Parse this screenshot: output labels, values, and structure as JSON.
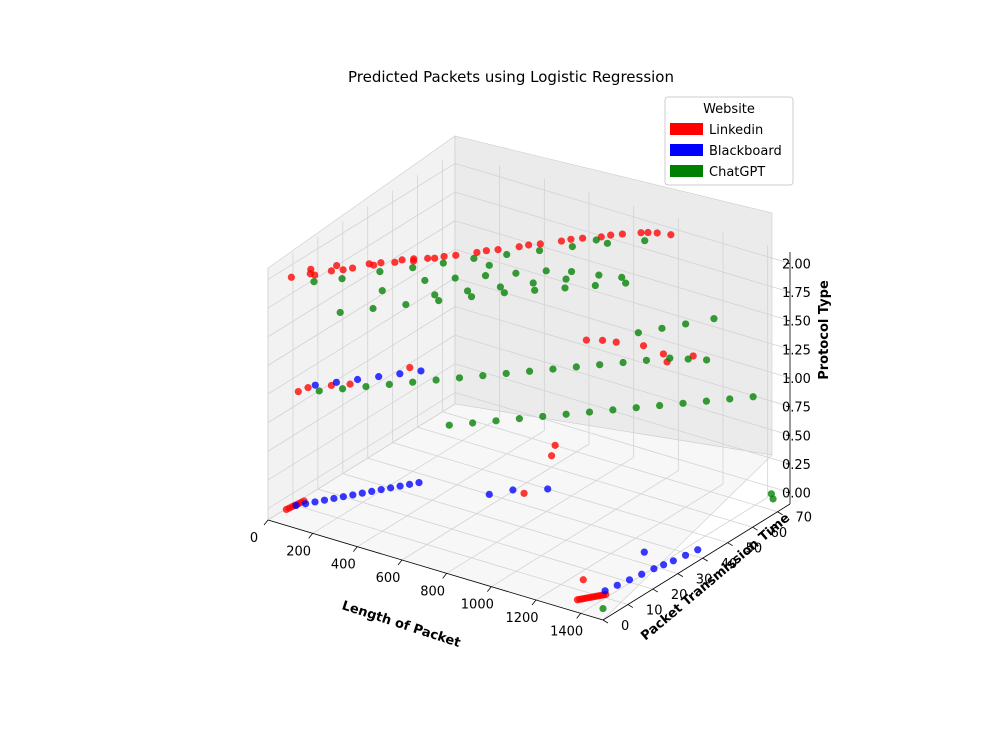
{
  "chart_data": {
    "type": "scatter",
    "title": "Predicted Packets using Logistic Regression",
    "xlabel": "Length of Packet",
    "ylabel": "Packet Transmission Time",
    "zlabel": "Protocol Type",
    "x_ticks": [
      "0",
      "200",
      "400",
      "600",
      "800",
      "1000",
      "1200",
      "1400"
    ],
    "y_ticks": [
      "0",
      "10",
      "20",
      "30",
      "40",
      "50",
      "60",
      "70"
    ],
    "z_ticks": [
      "0.00",
      "0.25",
      "0.50",
      "0.75",
      "1.00",
      "1.25",
      "1.50",
      "1.75",
      "2.00"
    ],
    "xlim": [
      0,
      1500
    ],
    "ylim": [
      0,
      75
    ],
    "zlim": [
      -0.1,
      2.1
    ],
    "grid": true,
    "projection": "3d",
    "legend": {
      "title": "Website",
      "placement": "top-right",
      "entries": [
        {
          "label": "Linkedin",
          "color": "#ff0000"
        },
        {
          "label": "Blackboard",
          "color": "#0000ff"
        },
        {
          "label": "ChatGPT",
          "color": "#008000"
        }
      ]
    },
    "series": [
      {
        "name": "Linkedin",
        "color": "#ff0000",
        "points": [
          [
            60,
            2,
            0
          ],
          [
            62,
            3,
            0
          ],
          [
            64,
            4,
            0
          ],
          [
            66,
            5,
            0
          ],
          [
            68,
            6,
            0
          ],
          [
            70,
            7,
            0
          ],
          [
            72,
            8,
            0
          ],
          [
            1380,
            0.5,
            0
          ],
          [
            1385,
            1,
            0
          ],
          [
            1390,
            1.5,
            0
          ],
          [
            1395,
            2,
            0
          ],
          [
            1400,
            2.5,
            0
          ],
          [
            1405,
            3,
            0
          ],
          [
            1410,
            3.5,
            0
          ],
          [
            1415,
            4,
            0
          ],
          [
            1420,
            4.5,
            0
          ],
          [
            1425,
            5,
            0
          ],
          [
            1430,
            5.5,
            0
          ],
          [
            1435,
            6,
            0
          ],
          [
            1440,
            6.5,
            0
          ],
          [
            1300,
            10,
            0
          ],
          [
            700,
            40,
            0
          ],
          [
            600,
            60,
            0
          ],
          [
            560,
            65,
            0
          ],
          [
            80,
            5,
            1
          ],
          [
            90,
            8,
            1
          ],
          [
            150,
            12,
            1
          ],
          [
            200,
            15,
            1
          ],
          [
            300,
            30,
            1
          ],
          [
            700,
            65,
            1
          ],
          [
            750,
            67,
            1
          ],
          [
            800,
            68,
            1
          ],
          [
            900,
            70,
            1
          ],
          [
            1000,
            69,
            1
          ],
          [
            1100,
            72,
            1
          ],
          [
            1050,
            66,
            1
          ],
          [
            60,
            4,
            2
          ],
          [
            100,
            8,
            2
          ],
          [
            150,
            12,
            2
          ],
          [
            200,
            16,
            2
          ],
          [
            250,
            20,
            2
          ],
          [
            300,
            24,
            2
          ],
          [
            350,
            27,
            2
          ],
          [
            400,
            31,
            2
          ],
          [
            450,
            35,
            2
          ],
          [
            500,
            39,
            2
          ],
          [
            550,
            43,
            2
          ],
          [
            600,
            47,
            2
          ],
          [
            650,
            51,
            2
          ],
          [
            700,
            55,
            2
          ],
          [
            750,
            59,
            2
          ],
          [
            800,
            62,
            2
          ],
          [
            850,
            66,
            2
          ],
          [
            900,
            69,
            2
          ],
          [
            950,
            71,
            2
          ],
          [
            1000,
            72,
            2
          ],
          [
            120,
            8,
            2
          ],
          [
            180,
            14,
            2
          ],
          [
            260,
            22,
            2
          ],
          [
            340,
            28,
            2
          ],
          [
            420,
            33,
            2
          ],
          [
            520,
            41,
            2
          ],
          [
            620,
            49,
            2
          ],
          [
            720,
            57,
            2
          ],
          [
            820,
            64,
            2
          ],
          [
            920,
            70,
            2
          ],
          [
            80,
            10,
            2
          ],
          [
            140,
            15,
            2
          ],
          [
            230,
            20,
            2
          ],
          [
            310,
            26,
            2
          ],
          [
            380,
            30,
            2
          ]
        ]
      },
      {
        "name": "Blackboard",
        "color": "#0000ff",
        "points": [
          [
            70,
            5,
            0
          ],
          [
            90,
            7,
            0
          ],
          [
            110,
            9,
            0
          ],
          [
            130,
            11,
            0
          ],
          [
            150,
            13,
            0
          ],
          [
            170,
            15,
            0
          ],
          [
            190,
            17,
            0
          ],
          [
            210,
            19,
            0
          ],
          [
            230,
            21,
            0
          ],
          [
            250,
            23,
            0
          ],
          [
            270,
            25,
            0
          ],
          [
            290,
            27,
            0
          ],
          [
            310,
            29,
            0
          ],
          [
            330,
            31,
            0
          ],
          [
            1420,
            8,
            0
          ],
          [
            1430,
            12,
            0
          ],
          [
            1440,
            16,
            0
          ],
          [
            1450,
            20,
            0
          ],
          [
            1460,
            24,
            0
          ],
          [
            1470,
            27,
            0
          ],
          [
            1480,
            30,
            0
          ],
          [
            1490,
            34,
            0
          ],
          [
            1500,
            38,
            0
          ],
          [
            1350,
            30,
            0
          ],
          [
            600,
            35,
            0
          ],
          [
            650,
            40,
            0
          ],
          [
            750,
            45,
            0
          ],
          [
            100,
            10,
            1
          ],
          [
            150,
            14,
            1
          ],
          [
            200,
            18,
            1
          ],
          [
            250,
            22,
            1
          ],
          [
            300,
            26,
            1
          ],
          [
            350,
            30,
            1
          ]
        ]
      },
      {
        "name": "ChatGPT",
        "color": "#008000",
        "points": [
          [
            150,
            5,
            2
          ],
          [
            220,
            10,
            2
          ],
          [
            300,
            18,
            2
          ],
          [
            380,
            24,
            2
          ],
          [
            450,
            30,
            2
          ],
          [
            520,
            36,
            2
          ],
          [
            600,
            42,
            2
          ],
          [
            680,
            48,
            2
          ],
          [
            760,
            54,
            2
          ],
          [
            850,
            60,
            2
          ],
          [
            950,
            66,
            2
          ],
          [
            1500,
            0,
            0
          ],
          [
            1480,
            70,
            0
          ],
          [
            1450,
            72,
            0
          ],
          [
            700,
            10,
            1
          ],
          [
            760,
            14,
            1
          ],
          [
            820,
            18,
            1
          ],
          [
            880,
            22,
            1
          ],
          [
            940,
            26,
            1
          ],
          [
            1000,
            30,
            1
          ],
          [
            1060,
            34,
            1
          ],
          [
            1120,
            38,
            1
          ],
          [
            1180,
            42,
            1
          ],
          [
            1240,
            46,
            1
          ],
          [
            1300,
            50,
            1
          ],
          [
            1360,
            54,
            1
          ],
          [
            1420,
            58,
            1
          ],
          [
            1480,
            62,
            1
          ],
          [
            140,
            8,
            1
          ],
          [
            200,
            12,
            1
          ],
          [
            260,
            16,
            1
          ],
          [
            320,
            20,
            1
          ],
          [
            380,
            24,
            1
          ],
          [
            440,
            28,
            1
          ],
          [
            500,
            32,
            1
          ],
          [
            560,
            36,
            1
          ],
          [
            620,
            40,
            1
          ],
          [
            680,
            44,
            1
          ],
          [
            740,
            48,
            1
          ],
          [
            800,
            52,
            1
          ],
          [
            860,
            56,
            1
          ],
          [
            920,
            60,
            1
          ],
          [
            980,
            64,
            1
          ],
          [
            1040,
            68,
            1
          ],
          [
            1100,
            70,
            1
          ],
          [
            1160,
            72,
            1
          ],
          [
            100,
            20,
            1.5
          ],
          [
            180,
            26,
            1.5
          ],
          [
            260,
            32,
            1.5
          ],
          [
            340,
            38,
            1.5
          ],
          [
            420,
            44,
            1.5
          ],
          [
            500,
            50,
            1.5
          ],
          [
            580,
            55,
            1.5
          ],
          [
            660,
            60,
            1.5
          ],
          [
            740,
            65,
            1.5
          ],
          [
            820,
            70,
            1.5
          ],
          [
            300,
            40,
            1.5
          ],
          [
            380,
            46,
            1.5
          ],
          [
            460,
            52,
            1.5
          ],
          [
            540,
            58,
            1.5
          ],
          [
            620,
            64,
            1.5
          ],
          [
            700,
            70,
            1.5
          ],
          [
            780,
            72,
            1.5
          ],
          [
            200,
            45,
            1.5
          ],
          [
            280,
            50,
            1.5
          ],
          [
            360,
            55,
            1.5
          ],
          [
            440,
            60,
            1.5
          ],
          [
            520,
            65,
            1.5
          ],
          [
            600,
            68,
            1.5
          ],
          [
            1100,
            50,
            1.5
          ],
          [
            1150,
            55,
            1.5
          ],
          [
            1200,
            60,
            1.5
          ],
          [
            1260,
            66,
            1.5
          ],
          [
            400,
            10,
            2
          ],
          [
            600,
            35,
            2
          ],
          [
            800,
            60,
            2
          ]
        ]
      }
    ]
  }
}
